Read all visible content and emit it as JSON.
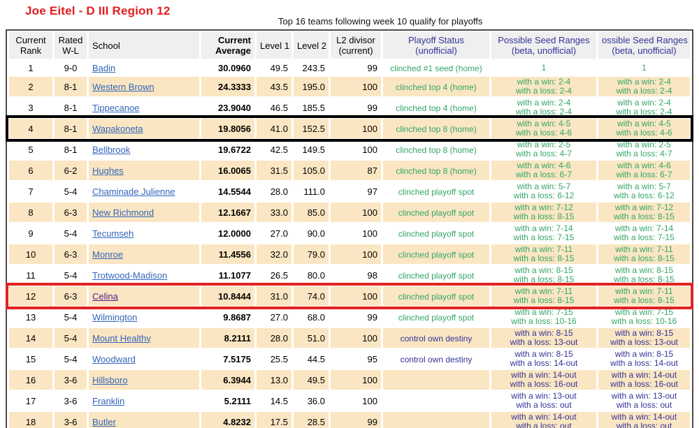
{
  "title": "Joe Eitel - D III Region 12",
  "subtitle": "Top 16 teams following week 10 qualify for playoffs",
  "colors": {
    "title_red": "#e51b20",
    "header_navy": "#333399",
    "status_green": "#33a667",
    "status_navy": "#333399",
    "row_tan": "#fae6c2",
    "header_gray": "#efefef",
    "link_blue": "#3366bb",
    "link_visited_purple": "#551a8b",
    "highlight_black_box": "#000000",
    "highlight_red_box": "#e32222"
  },
  "table": {
    "columns": [
      {
        "key": "rank",
        "lines": [
          "Current",
          "Rank"
        ]
      },
      {
        "key": "wl",
        "lines": [
          "Rated",
          "W-L"
        ]
      },
      {
        "key": "school",
        "lines": [
          "School"
        ]
      },
      {
        "key": "avg",
        "lines": [
          "Current",
          "Average"
        ]
      },
      {
        "key": "level1",
        "lines": [
          "Level 1"
        ]
      },
      {
        "key": "level2",
        "lines": [
          "Level 2"
        ]
      },
      {
        "key": "divisor",
        "lines": [
          "L2 divisor",
          "(current)"
        ]
      },
      {
        "key": "status",
        "lines": [
          "Playoff Status",
          "(unofficial)"
        ]
      },
      {
        "key": "seed1",
        "lines": [
          "Possible Seed Ranges",
          "(beta, unofficial)"
        ]
      },
      {
        "key": "seed2",
        "lines": [
          "ossible Seed Ranges",
          "(beta, unofficial)"
        ]
      }
    ],
    "rows": [
      {
        "rank": "1",
        "wl": "9-0",
        "school": "Badin",
        "avg": "30.0960",
        "l1": "49.5",
        "l2": "243.5",
        "div": "99",
        "status": "clinched #1 seed (home)",
        "status_tone": "green",
        "seeds": [
          "1"
        ],
        "seed_tone": "green",
        "visited": false,
        "highlight": null
      },
      {
        "rank": "2",
        "wl": "8-1",
        "school": "Western Brown",
        "avg": "24.3333",
        "l1": "43.5",
        "l2": "195.0",
        "div": "100",
        "status": "clinched top 4 (home)",
        "status_tone": "green",
        "seeds": [
          "with a win: 2-4",
          "with a loss: 2-4"
        ],
        "seed_tone": "green",
        "visited": false,
        "highlight": null
      },
      {
        "rank": "3",
        "wl": "8-1",
        "school": "Tippecanoe",
        "avg": "23.9040",
        "l1": "46.5",
        "l2": "185.5",
        "div": "99",
        "status": "clinched top 4 (home)",
        "status_tone": "green",
        "seeds": [
          "with a win: 2-4",
          "with a loss: 2-4"
        ],
        "seed_tone": "green",
        "visited": false,
        "highlight": null
      },
      {
        "rank": "4",
        "wl": "8-1",
        "school": "Wapakoneta",
        "avg": "19.8056",
        "l1": "41.0",
        "l2": "152.5",
        "div": "100",
        "status": "clinched top 8 (home)",
        "status_tone": "green",
        "seeds": [
          "with a win: 4-5",
          "with a loss: 4-6"
        ],
        "seed_tone": "green",
        "visited": false,
        "highlight": "black"
      },
      {
        "rank": "5",
        "wl": "8-1",
        "school": "Bellbrook",
        "avg": "19.6722",
        "l1": "42.5",
        "l2": "149.5",
        "div": "100",
        "status": "clinched top 8 (home)",
        "status_tone": "green",
        "seeds": [
          "with a win: 2-5",
          "with a loss: 4-7"
        ],
        "seed_tone": "green",
        "visited": false,
        "highlight": null
      },
      {
        "rank": "6",
        "wl": "6-2",
        "school": "Hughes",
        "avg": "16.0065",
        "l1": "31.5",
        "l2": "105.0",
        "div": "87",
        "status": "clinched top 8 (home)",
        "status_tone": "green",
        "seeds": [
          "with a win: 4-6",
          "with a loss: 6-7"
        ],
        "seed_tone": "green",
        "visited": false,
        "highlight": null
      },
      {
        "rank": "7",
        "wl": "5-4",
        "school": "Chaminade Julienne",
        "avg": "14.5544",
        "l1": "28.0",
        "l2": "111.0",
        "div": "97",
        "status": "clinched playoff spot",
        "status_tone": "green",
        "seeds": [
          "with a win: 5-7",
          "with a loss: 6-12"
        ],
        "seed_tone": "green",
        "visited": false,
        "highlight": null
      },
      {
        "rank": "8",
        "wl": "6-3",
        "school": "New Richmond",
        "avg": "12.1667",
        "l1": "33.0",
        "l2": "85.0",
        "div": "100",
        "status": "clinched playoff spot",
        "status_tone": "green",
        "seeds": [
          "with a win: 7-12",
          "with a loss: 8-15"
        ],
        "seed_tone": "green",
        "visited": false,
        "highlight": null
      },
      {
        "rank": "9",
        "wl": "5-4",
        "school": "Tecumseh",
        "avg": "12.0000",
        "l1": "27.0",
        "l2": "90.0",
        "div": "100",
        "status": "clinched playoff spot",
        "status_tone": "green",
        "seeds": [
          "with a win: 7-14",
          "with a loss: 7-15"
        ],
        "seed_tone": "green",
        "visited": false,
        "highlight": null
      },
      {
        "rank": "10",
        "wl": "6-3",
        "school": "Monroe",
        "avg": "11.4556",
        "l1": "32.0",
        "l2": "79.0",
        "div": "100",
        "status": "clinched playoff spot",
        "status_tone": "green",
        "seeds": [
          "with a win: 7-11",
          "with a loss: 8-15"
        ],
        "seed_tone": "green",
        "visited": false,
        "highlight": null
      },
      {
        "rank": "11",
        "wl": "5-4",
        "school": "Trotwood-Madison",
        "avg": "11.1077",
        "l1": "26.5",
        "l2": "80.0",
        "div": "98",
        "status": "clinched playoff spot",
        "status_tone": "green",
        "seeds": [
          "with a win: 8-15",
          "with a loss: 8-15"
        ],
        "seed_tone": "green",
        "visited": false,
        "highlight": null
      },
      {
        "rank": "12",
        "wl": "6-3",
        "school": "Celina",
        "avg": "10.8444",
        "l1": "31.0",
        "l2": "74.0",
        "div": "100",
        "status": "clinched playoff spot",
        "status_tone": "green",
        "seeds": [
          "with a win: 7-11",
          "with a loss: 8-15"
        ],
        "seed_tone": "green",
        "visited": true,
        "highlight": "red"
      },
      {
        "rank": "13",
        "wl": "5-4",
        "school": "Wilmington",
        "avg": "9.8687",
        "l1": "27.0",
        "l2": "68.0",
        "div": "99",
        "status": "clinched playoff spot",
        "status_tone": "green",
        "seeds": [
          "with a win: 7-15",
          "with a loss: 10-16"
        ],
        "seed_tone": "green",
        "visited": false,
        "highlight": null
      },
      {
        "rank": "14",
        "wl": "5-4",
        "school": "Mount Healthy",
        "avg": "8.2111",
        "l1": "28.0",
        "l2": "51.0",
        "div": "100",
        "status": "control own destiny",
        "status_tone": "navy",
        "seeds": [
          "with a win: 8-15",
          "with a loss: 13-out"
        ],
        "seed_tone": "navy",
        "visited": false,
        "highlight": null
      },
      {
        "rank": "15",
        "wl": "5-4",
        "school": "Woodward",
        "avg": "7.5175",
        "l1": "25.5",
        "l2": "44.5",
        "div": "95",
        "status": "control own destiny",
        "status_tone": "navy",
        "seeds": [
          "with a win: 8-15",
          "with a loss: 14-out"
        ],
        "seed_tone": "navy",
        "visited": false,
        "highlight": null
      },
      {
        "rank": "16",
        "wl": "3-6",
        "school": "Hillsboro",
        "avg": "6.3944",
        "l1": "13.0",
        "l2": "49.5",
        "div": "100",
        "status": "",
        "status_tone": null,
        "seeds": [
          "with a win: 14-out",
          "with a loss: 16-out"
        ],
        "seed_tone": "navy",
        "visited": false,
        "highlight": null
      },
      {
        "rank": "17",
        "wl": "3-6",
        "school": "Franklin",
        "avg": "5.2111",
        "l1": "14.5",
        "l2": "36.0",
        "div": "100",
        "status": "",
        "status_tone": null,
        "seeds": [
          "with a win: 13-out",
          "with a loss: out"
        ],
        "seed_tone": "navy",
        "visited": false,
        "highlight": null
      },
      {
        "rank": "18",
        "wl": "3-6",
        "school": "Butler",
        "avg": "4.8232",
        "l1": "17.5",
        "l2": "28.5",
        "div": "99",
        "status": "",
        "status_tone": null,
        "seeds": [
          "with a win: 14-out",
          "with a loss: out"
        ],
        "seed_tone": "navy",
        "visited": false,
        "highlight": null
      }
    ]
  }
}
